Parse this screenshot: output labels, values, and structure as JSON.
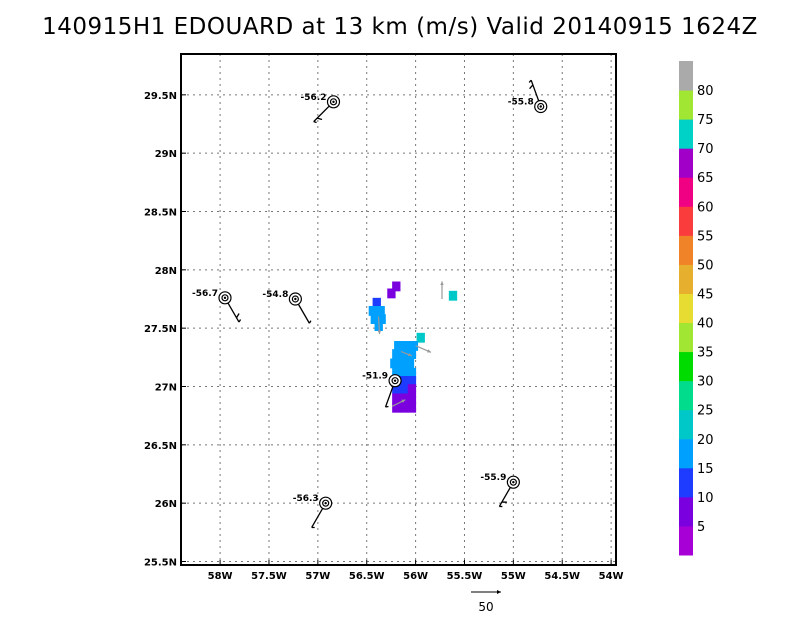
{
  "title": "140915H1 EDOUARD at 13 km (m/s) Valid 20140915 1624Z",
  "chart_data": {
    "type": "heatmap",
    "title": "140915H1 EDOUARD at 13 km (m/s) Valid 20140915 1624Z",
    "xlim": [
      -58.4,
      -53.95
    ],
    "ylim": [
      25.47,
      29.85
    ],
    "x_ticks": [
      {
        "value": -58.0,
        "label": "58W"
      },
      {
        "value": -57.5,
        "label": "57.5W"
      },
      {
        "value": -57.0,
        "label": "57W"
      },
      {
        "value": -56.5,
        "label": "56.5W"
      },
      {
        "value": -56.0,
        "label": "56W"
      },
      {
        "value": -55.5,
        "label": "55.5W"
      },
      {
        "value": -55.0,
        "label": "55W"
      },
      {
        "value": -54.5,
        "label": "54.5W"
      },
      {
        "value": -54.0,
        "label": "54W"
      }
    ],
    "y_ticks": [
      {
        "value": 25.5,
        "label": "25.5N"
      },
      {
        "value": 26.0,
        "label": "26N"
      },
      {
        "value": 26.5,
        "label": "26.5N"
      },
      {
        "value": 27.0,
        "label": "27N"
      },
      {
        "value": 27.5,
        "label": "27.5N"
      },
      {
        "value": 28.0,
        "label": "28N"
      },
      {
        "value": 28.5,
        "label": "28.5N"
      },
      {
        "value": 29.0,
        "label": "29N"
      },
      {
        "value": 29.5,
        "label": "29.5N"
      }
    ],
    "grid": true,
    "colorbar": {
      "colors": [
        "#a600d6",
        "#7a00e0",
        "#1e3cff",
        "#00a0ff",
        "#00c8c8",
        "#00dc8c",
        "#00dc00",
        "#a0e632",
        "#e6dc32",
        "#e6af2d",
        "#f08228",
        "#fa3c3c",
        "#f00082",
        "#a000c8",
        "#00d2c8",
        "#a0e632",
        "#aaaaaa"
      ],
      "labels": [
        "5",
        "10",
        "15",
        "20",
        "25",
        "30",
        "35",
        "40",
        "45",
        "50",
        "55",
        "60",
        "65",
        "70",
        "75",
        "80"
      ]
    },
    "cells": [
      {
        "lon": -56.2,
        "lat": 27.86,
        "v": 8
      },
      {
        "lon": -56.25,
        "lat": 27.8,
        "v": 8
      },
      {
        "lon": -56.4,
        "lat": 27.72,
        "v": 12
      },
      {
        "lon": -56.44,
        "lat": 27.65,
        "v": 16
      },
      {
        "lon": -56.36,
        "lat": 27.65,
        "v": 16
      },
      {
        "lon": -56.42,
        "lat": 27.58,
        "v": 16
      },
      {
        "lon": -56.35,
        "lat": 27.58,
        "v": 17
      },
      {
        "lon": -56.38,
        "lat": 27.52,
        "v": 19
      },
      {
        "lon": -55.62,
        "lat": 27.78,
        "v": 24
      },
      {
        "lon": -55.95,
        "lat": 27.42,
        "v": 20
      },
      {
        "lon": -56.18,
        "lat": 27.35,
        "v": 16
      },
      {
        "lon": -56.1,
        "lat": 27.35,
        "v": 16
      },
      {
        "lon": -56.02,
        "lat": 27.35,
        "v": 18
      },
      {
        "lon": -56.2,
        "lat": 27.28,
        "v": 17
      },
      {
        "lon": -56.12,
        "lat": 27.28,
        "v": 16
      },
      {
        "lon": -56.04,
        "lat": 27.28,
        "v": 17
      },
      {
        "lon": -56.22,
        "lat": 27.2,
        "v": 16
      },
      {
        "lon": -56.14,
        "lat": 27.2,
        "v": 16
      },
      {
        "lon": -56.06,
        "lat": 27.2,
        "v": 16
      },
      {
        "lon": -56.2,
        "lat": 27.12,
        "v": 15
      },
      {
        "lon": -56.12,
        "lat": 27.12,
        "v": 16
      },
      {
        "lon": -56.04,
        "lat": 27.12,
        "v": 15
      },
      {
        "lon": -56.12,
        "lat": 27.05,
        "v": 13
      },
      {
        "lon": -56.04,
        "lat": 27.05,
        "v": 12
      },
      {
        "lon": -56.2,
        "lat": 26.98,
        "v": 12
      },
      {
        "lon": -56.12,
        "lat": 26.98,
        "v": 10
      },
      {
        "lon": -56.04,
        "lat": 26.98,
        "v": 9
      },
      {
        "lon": -56.2,
        "lat": 26.9,
        "v": 8
      },
      {
        "lon": -56.12,
        "lat": 26.9,
        "v": 9
      },
      {
        "lon": -56.04,
        "lat": 26.9,
        "v": 8
      },
      {
        "lon": -56.2,
        "lat": 26.82,
        "v": 8
      },
      {
        "lon": -56.12,
        "lat": 26.82,
        "v": 7
      },
      {
        "lon": -56.04,
        "lat": 26.82,
        "v": 8
      }
    ],
    "points": [
      {
        "label": "-56.2",
        "lon": -56.84,
        "lat": 29.44,
        "barb_angle": 135,
        "barb_flags": [
          0.3,
          0.5
        ]
      },
      {
        "label": "-55.8",
        "lon": -54.72,
        "lat": 29.4,
        "barb_angle": 250,
        "barb_flags": [
          0.3,
          0.5
        ]
      },
      {
        "label": "-56.7",
        "lon": -57.95,
        "lat": 27.76,
        "barb_angle": 60,
        "barb_flags": [
          0.3,
          0.5
        ]
      },
      {
        "label": "-54.8",
        "lon": -57.23,
        "lat": 27.75,
        "barb_angle": 60,
        "barb_flags": [
          0.3
        ]
      },
      {
        "label": "-51.9",
        "lon": -56.21,
        "lat": 27.05,
        "barb_angle": 110,
        "barb_flags": [
          0.3
        ]
      },
      {
        "label": "-56.3",
        "lon": -56.92,
        "lat": 26.0,
        "barb_angle": 120,
        "barb_flags": [
          0.3
        ]
      },
      {
        "label": "-55.9",
        "lon": -55.0,
        "lat": 26.18,
        "barb_angle": 120,
        "barb_flags": [
          0.3,
          0.5
        ]
      }
    ],
    "vectors": [
      {
        "lon": -56.38,
        "lat": 27.6,
        "u": 1,
        "v": -16
      },
      {
        "lon": -55.73,
        "lat": 27.75,
        "u": 0,
        "v": 16
      },
      {
        "lon": -56.0,
        "lat": 27.35,
        "u": 14,
        "v": -6
      },
      {
        "lon": -56.15,
        "lat": 27.3,
        "u": 10,
        "v": -4
      },
      {
        "lon": -56.24,
        "lat": 26.83,
        "u": 12,
        "v": 6
      }
    ],
    "reference_vector": {
      "value": 50,
      "label": "50"
    }
  }
}
